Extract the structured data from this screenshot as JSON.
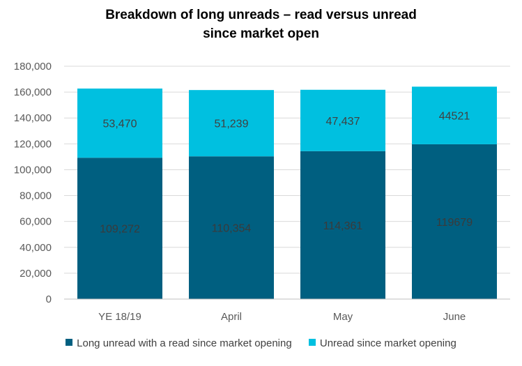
{
  "chart_data": {
    "type": "bar",
    "stacked": true,
    "title_line1": "Breakdown of long unreads – read versus unread",
    "title_line2": "since market open",
    "xlabel": "",
    "ylabel": "",
    "categories": [
      "YE 18/19",
      "April",
      "May",
      "June"
    ],
    "ylim": [
      0,
      180000
    ],
    "yticks": [
      0,
      20000,
      40000,
      60000,
      80000,
      100000,
      120000,
      140000,
      160000,
      180000
    ],
    "ytick_labels": [
      "0",
      "20,000",
      "40,000",
      "60,000",
      "80,000",
      "100,000",
      "120,000",
      "140,000",
      "160,000",
      "180,000"
    ],
    "grid": true,
    "legend_position": "bottom",
    "series": [
      {
        "name": "Long unread with a read since market opening",
        "color": "#005F80",
        "values": [
          109272,
          110354,
          114361,
          119679
        ],
        "labels": [
          "109,272",
          "110,354",
          "114,361",
          "119679"
        ],
        "label_color": "#3a3a3a"
      },
      {
        "name": "Unread since market opening",
        "color": "#00C0E0",
        "values": [
          53470,
          51239,
          47437,
          44521
        ],
        "labels": [
          "53,470",
          "51,239",
          "47,437",
          "44521"
        ],
        "label_color": "#404040"
      }
    ]
  }
}
